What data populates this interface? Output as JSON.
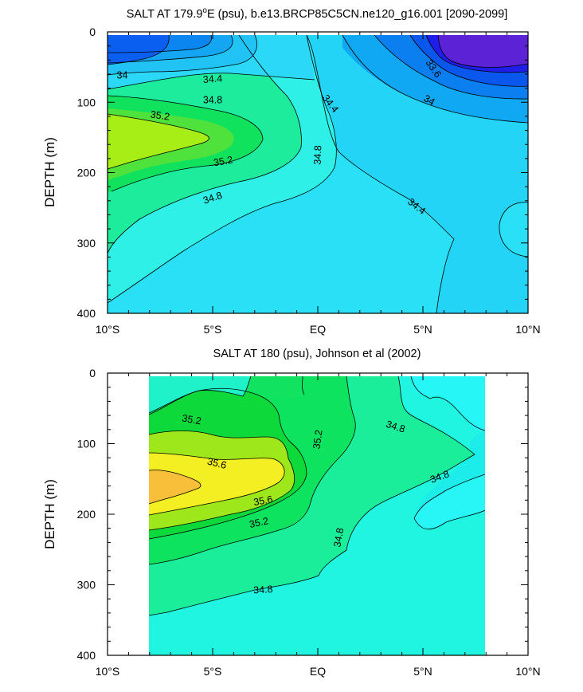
{
  "chart_data": [
    {
      "type": "heatmap",
      "subtype": "filled-contour",
      "title": "SALT AT 179.9°E (psu), b.e13.BRCP85C5CN.ne120_g16.001 [2090-2099]",
      "title_parts": [
        "SALT AT 179.9",
        "o",
        "E (psu), b.e13.BRCP85C5CN.ne120_g16.001 [2090-2099]"
      ],
      "xlabel": "",
      "ylabel": "DEPTH (m)",
      "x_ticks": [
        "10°S",
        "5°S",
        "EQ",
        "5°N",
        "10°N"
      ],
      "x_tick_values": [
        -10,
        -5,
        0,
        5,
        10
      ],
      "xlim": [
        -10,
        10
      ],
      "y_ticks": [
        "0",
        "100",
        "200",
        "300",
        "400"
      ],
      "y_tick_values": [
        0,
        100,
        200,
        300,
        400
      ],
      "ylim": [
        400,
        0
      ],
      "data_xlim": [
        -10,
        10
      ],
      "data_ylim": [
        5,
        400
      ],
      "contour_labels": [
        {
          "text": "34",
          "lat": -9.3,
          "depth": 62,
          "angle": 0
        },
        {
          "text": "34.4",
          "lat": -5.0,
          "depth": 67,
          "angle": -4
        },
        {
          "text": "34.8",
          "lat": -5.0,
          "depth": 97,
          "angle": 0
        },
        {
          "text": "35.2",
          "lat": -7.5,
          "depth": 119,
          "angle": 8
        },
        {
          "text": "35.2",
          "lat": -4.5,
          "depth": 184,
          "angle": -10
        },
        {
          "text": "34.8",
          "lat": -5.0,
          "depth": 236,
          "angle": -18
        },
        {
          "text": "34.8",
          "lat": 0.0,
          "depth": 175,
          "angle": -88
        },
        {
          "text": "34.4",
          "lat": 0.6,
          "depth": 102,
          "angle": 52
        },
        {
          "text": "33.6",
          "lat": 5.5,
          "depth": 52,
          "angle": 55
        },
        {
          "text": "34",
          "lat": 5.3,
          "depth": 97,
          "angle": 30
        },
        {
          "text": "34.4",
          "lat": 4.7,
          "depth": 248,
          "angle": 38
        }
      ]
    },
    {
      "type": "heatmap",
      "subtype": "filled-contour",
      "title": "SALT AT 180 (psu), Johnson et al (2002)",
      "xlabel": "",
      "ylabel": "DEPTH (m)",
      "x_ticks": [
        "10°S",
        "5°S",
        "EQ",
        "5°N",
        "10°N"
      ],
      "x_tick_values": [
        -10,
        -5,
        0,
        5,
        10
      ],
      "xlim": [
        -10,
        10
      ],
      "y_ticks": [
        "0",
        "100",
        "200",
        "300",
        "400"
      ],
      "y_tick_values": [
        0,
        100,
        200,
        300,
        400
      ],
      "ylim": [
        400,
        0
      ],
      "data_xlim": [
        -8,
        8
      ],
      "data_ylim": [
        5,
        400
      ],
      "contour_labels": [
        {
          "text": "35.2",
          "lat": -6.0,
          "depth": 66,
          "angle": 10
        },
        {
          "text": "35.6",
          "lat": -4.8,
          "depth": 128,
          "angle": 14
        },
        {
          "text": "35.6",
          "lat": -2.6,
          "depth": 181,
          "angle": -10
        },
        {
          "text": "35.2",
          "lat": -2.8,
          "depth": 212,
          "angle": -12
        },
        {
          "text": "34.8",
          "lat": -2.6,
          "depth": 307,
          "angle": -3
        },
        {
          "text": "35.2",
          "lat": 0.0,
          "depth": 94,
          "angle": -82
        },
        {
          "text": "34.8",
          "lat": 1.0,
          "depth": 233,
          "angle": -80
        },
        {
          "text": "34.8",
          "lat": 3.7,
          "depth": 76,
          "angle": 18
        },
        {
          "text": "34.8",
          "lat": 5.8,
          "depth": 147,
          "angle": -20
        }
      ]
    }
  ]
}
